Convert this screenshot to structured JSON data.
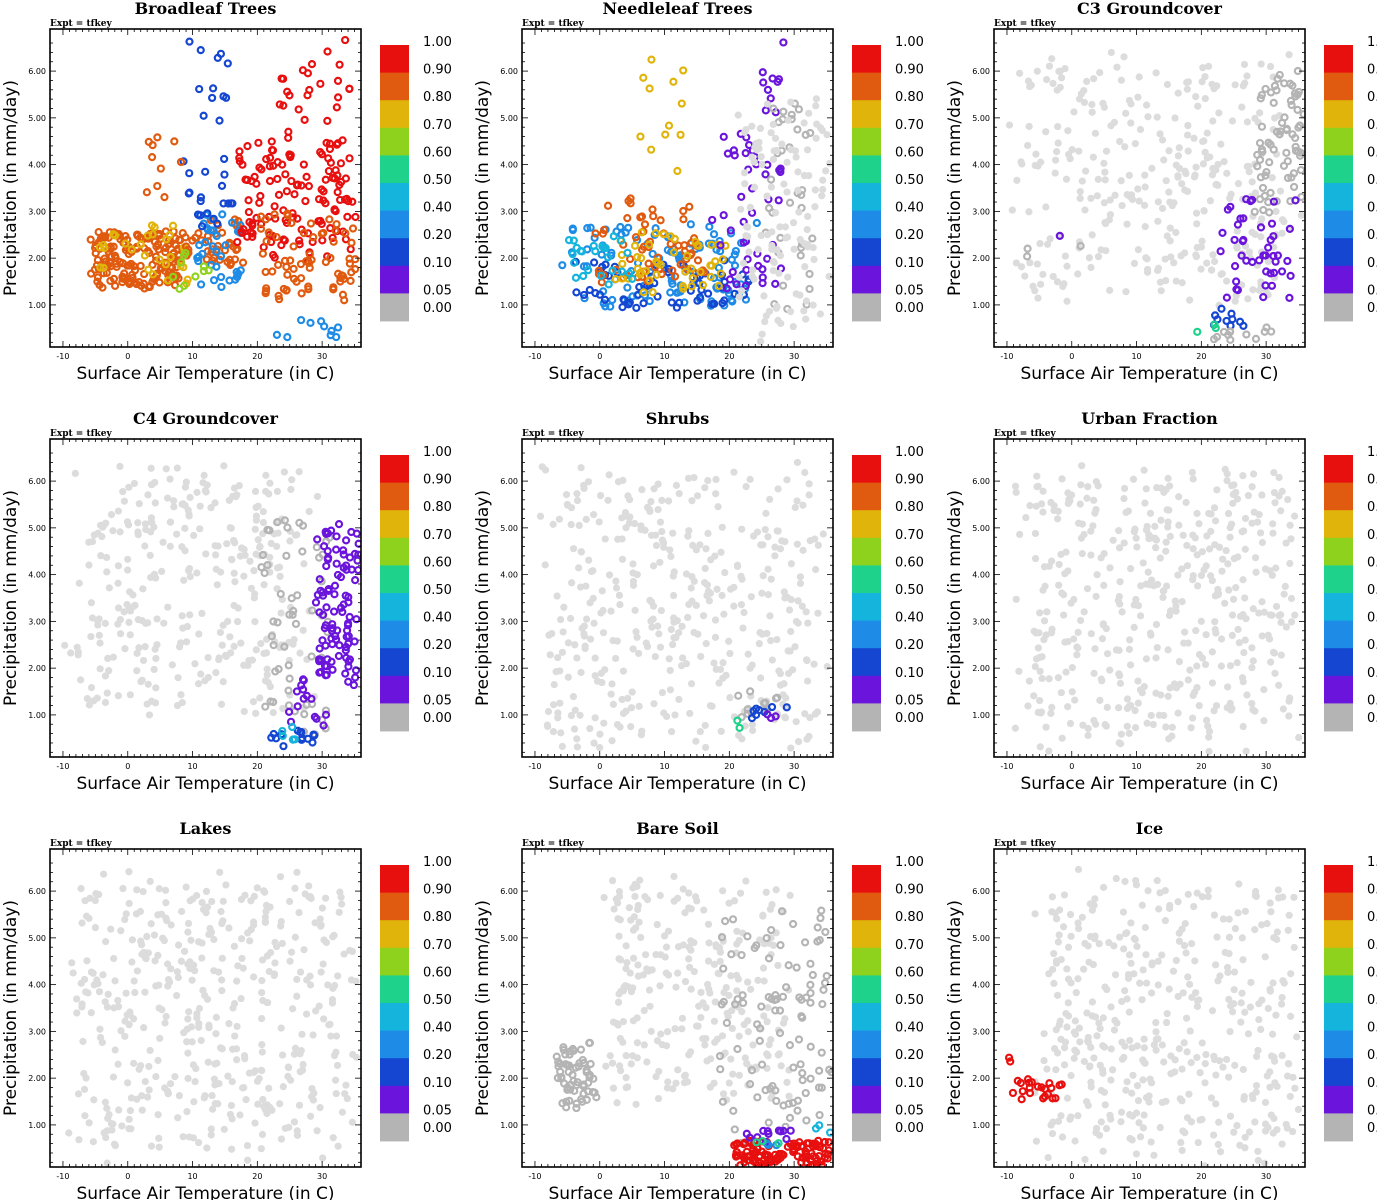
{
  "figure": {
    "expt_label": "Expt = tfkey",
    "xlabel": "Surface Air Temperature (in C)",
    "ylabel": "Precipitation (in mm/day)",
    "x_ticks": [
      "-10",
      "0",
      "10",
      "20",
      "30"
    ],
    "y_ticks": [
      "1.00",
      "2.00",
      "3.00",
      "4.00",
      "5.00",
      "6.00"
    ],
    "colorbar_labels": [
      "1.00",
      "0.90",
      "0.80",
      "0.70",
      "0.60",
      "0.50",
      "0.40",
      "0.20",
      "0.10",
      "0.05",
      "0.00"
    ],
    "colorbar_colors": [
      "#e80f0f",
      "#e05a0f",
      "#e0b40a",
      "#8fd21e",
      "#1ed28c",
      "#14b4dc",
      "#1e8ce6",
      "#1446d2",
      "#6a14dc",
      "#b4b4b4"
    ],
    "background_point_color": "#dcdcdc"
  },
  "chart_data": [
    {
      "type": "scatter",
      "title": "Broadleaf Trees",
      "xlabel": "Surface Air Temperature (in C)",
      "ylabel": "Precipitation (in mm/day)",
      "xlim": [
        -12,
        36
      ],
      "ylim": [
        0.1,
        6.9
      ],
      "clusters": [
        {
          "color": "#e05a0f",
          "n": 170,
          "x": [
            -6,
            10
          ],
          "y": [
            1.3,
            2.6
          ]
        },
        {
          "color": "#e0b40a",
          "n": 30,
          "x": [
            -6,
            10
          ],
          "y": [
            1.4,
            2.8
          ]
        },
        {
          "color": "#e05a0f",
          "n": 40,
          "x": [
            8,
            18
          ],
          "y": [
            1.8,
            3.0
          ]
        },
        {
          "color": "#1e8ce6",
          "n": 40,
          "x": [
            10,
            18
          ],
          "y": [
            1.2,
            3.0
          ]
        },
        {
          "color": "#1446d2",
          "n": 20,
          "x": [
            8,
            17
          ],
          "y": [
            2.5,
            4.4
          ]
        },
        {
          "color": "#e80f0f",
          "n": 130,
          "x": [
            16,
            36
          ],
          "y": [
            1.8,
            4.6
          ]
        },
        {
          "color": "#e05a0f",
          "n": 70,
          "x": [
            20,
            36
          ],
          "y": [
            1.0,
            3.0
          ]
        },
        {
          "color": "#e80f0f",
          "n": 25,
          "x": [
            22,
            35
          ],
          "y": [
            4.3,
            6.8
          ]
        },
        {
          "color": "#1446d2",
          "n": 12,
          "x": [
            9,
            16
          ],
          "y": [
            4.5,
            6.7
          ]
        },
        {
          "color": "#1e8ce6",
          "n": 10,
          "x": [
            22,
            33
          ],
          "y": [
            0.3,
            0.7
          ]
        },
        {
          "color": "#e05a0f",
          "n": 10,
          "x": [
            2,
            9
          ],
          "y": [
            3.1,
            4.7
          ]
        },
        {
          "color": "#8fd21e",
          "n": 10,
          "x": [
            4,
            14
          ],
          "y": [
            1.2,
            2.3
          ]
        }
      ]
    },
    {
      "type": "scatter",
      "title": "Needleleaf Trees",
      "xlabel": "Surface Air Temperature (in C)",
      "ylabel": "Precipitation (in mm/day)",
      "xlim": [
        -12,
        36
      ],
      "ylim": [
        0.1,
        6.9
      ],
      "clusters": [
        {
          "color": "#1e8ce6",
          "n": 110,
          "x": [
            -6,
            25
          ],
          "y": [
            0.9,
            2.8
          ]
        },
        {
          "color": "#1446d2",
          "n": 60,
          "x": [
            -4,
            26
          ],
          "y": [
            0.9,
            2.0
          ]
        },
        {
          "color": "#e05a0f",
          "n": 60,
          "x": [
            -2,
            17
          ],
          "y": [
            1.4,
            3.4
          ]
        },
        {
          "color": "#e0b40a",
          "n": 50,
          "x": [
            2,
            20
          ],
          "y": [
            1.2,
            2.6
          ]
        },
        {
          "color": "#14b4dc",
          "n": 25,
          "x": [
            -6,
            6
          ],
          "y": [
            1.4,
            2.6
          ]
        },
        {
          "color": "#6a14dc",
          "n": 45,
          "x": [
            17,
            29
          ],
          "y": [
            0.9,
            4.8
          ]
        },
        {
          "color": "#6a14dc",
          "n": 10,
          "x": [
            23,
            29
          ],
          "y": [
            4.8,
            6.8
          ]
        },
        {
          "color": "#e0b40a",
          "n": 12,
          "x": [
            5,
            13
          ],
          "y": [
            3.5,
            6.6
          ]
        },
        {
          "color": "#b4b4b4",
          "n": 35,
          "x": [
            25,
            34
          ],
          "y": [
            0.8,
            5.6
          ]
        },
        {
          "color": "#dcdcdc",
          "n": 120,
          "x": [
            20,
            36
          ],
          "y": [
            0.1,
            5.5
          ]
        }
      ]
    },
    {
      "type": "scatter",
      "title": "C3 Groundcover",
      "xlabel": "Surface Air Temperature (in C)",
      "ylabel": "Precipitation (in mm/day)",
      "xlim": [
        -12,
        36
      ],
      "ylim": [
        0.1,
        6.9
      ],
      "clusters": [
        {
          "color": "#dcdcdc",
          "n": 320,
          "x": [
            -10,
            36
          ],
          "y": [
            0.8,
            6.5
          ]
        },
        {
          "color": "#b4b4b4",
          "n": 70,
          "x": [
            28,
            36
          ],
          "y": [
            2.8,
            6.2
          ]
        },
        {
          "color": "#6a14dc",
          "n": 45,
          "x": [
            22,
            36
          ],
          "y": [
            1.0,
            3.4
          ]
        },
        {
          "color": "#1446d2",
          "n": 10,
          "x": [
            21,
            27
          ],
          "y": [
            0.5,
            1.0
          ]
        },
        {
          "color": "#1ed28c",
          "n": 3,
          "x": [
            19,
            23
          ],
          "y": [
            0.4,
            0.6
          ]
        },
        {
          "color": "#b4b4b4",
          "n": 12,
          "x": [
            21,
            33
          ],
          "y": [
            0.2,
            0.6
          ]
        },
        {
          "color": "#b4b4b4",
          "n": 3,
          "x": [
            -8,
            3
          ],
          "y": [
            1.9,
            2.4
          ]
        },
        {
          "color": "#6a14dc",
          "n": 1,
          "x": [
            -2,
            -1
          ],
          "y": [
            2.4,
            2.5
          ]
        }
      ]
    },
    {
      "type": "scatter",
      "title": "C4 Groundcover",
      "xlabel": "Surface Air Temperature (in C)",
      "ylabel": "Precipitation (in mm/day)",
      "xlim": [
        -12,
        36
      ],
      "ylim": [
        0.1,
        6.9
      ],
      "clusters": [
        {
          "color": "#dcdcdc",
          "n": 320,
          "x": [
            -10,
            30
          ],
          "y": [
            0.8,
            6.5
          ]
        },
        {
          "color": "#b4b4b4",
          "n": 55,
          "x": [
            20,
            32
          ],
          "y": [
            0.2,
            5.6
          ]
        },
        {
          "color": "#6a14dc",
          "n": 95,
          "x": [
            29,
            36
          ],
          "y": [
            1.5,
            5.2
          ]
        },
        {
          "color": "#6a14dc",
          "n": 20,
          "x": [
            24,
            31
          ],
          "y": [
            0.6,
            2.2
          ]
        },
        {
          "color": "#1446d2",
          "n": 15,
          "x": [
            21,
            29
          ],
          "y": [
            0.3,
            0.7
          ]
        },
        {
          "color": "#14b4dc",
          "n": 5,
          "x": [
            22,
            27
          ],
          "y": [
            0.4,
            0.8
          ]
        }
      ]
    },
    {
      "type": "scatter",
      "title": "Shrubs",
      "xlabel": "Surface Air Temperature (in C)",
      "ylabel": "Precipitation (in mm/day)",
      "xlim": [
        -12,
        36
      ],
      "ylim": [
        0.1,
        6.9
      ],
      "clusters": [
        {
          "color": "#dcdcdc",
          "n": 400,
          "x": [
            -10,
            36
          ],
          "y": [
            0.1,
            6.5
          ]
        },
        {
          "color": "#b4b4b4",
          "n": 12,
          "x": [
            21,
            29
          ],
          "y": [
            0.9,
            1.7
          ]
        },
        {
          "color": "#1446d2",
          "n": 8,
          "x": [
            23,
            29
          ],
          "y": [
            0.9,
            1.2
          ]
        },
        {
          "color": "#1ed28c",
          "n": 2,
          "x": [
            21,
            25
          ],
          "y": [
            0.7,
            1.0
          ]
        },
        {
          "color": "#6a14dc",
          "n": 3,
          "x": [
            24,
            28
          ],
          "y": [
            0.9,
            1.1
          ]
        }
      ]
    },
    {
      "type": "scatter",
      "title": "Urban Fraction",
      "xlabel": "Surface Air Temperature (in C)",
      "ylabel": "Precipitation (in mm/day)",
      "xlim": [
        -12,
        36
      ],
      "ylim": [
        0.1,
        6.9
      ],
      "clusters": [
        {
          "color": "#dcdcdc",
          "n": 450,
          "x": [
            -10,
            36
          ],
          "y": [
            0.1,
            6.5
          ]
        }
      ]
    },
    {
      "type": "scatter",
      "title": "Lakes",
      "xlabel": "Surface Air Temperature (in C)",
      "ylabel": "Precipitation (in mm/day)",
      "xlim": [
        -12,
        36
      ],
      "ylim": [
        0.1,
        6.9
      ],
      "clusters": [
        {
          "color": "#dcdcdc",
          "n": 450,
          "x": [
            -10,
            36
          ],
          "y": [
            0.1,
            6.5
          ]
        }
      ]
    },
    {
      "type": "scatter",
      "title": "Bare Soil",
      "xlabel": "Surface Air Temperature (in C)",
      "ylabel": "Precipitation (in mm/day)",
      "xlim": [
        -12,
        36
      ],
      "ylim": [
        0.1,
        6.9
      ],
      "clusters": [
        {
          "color": "#dcdcdc",
          "n": 260,
          "x": [
            0,
            30
          ],
          "y": [
            1.2,
            6.5
          ]
        },
        {
          "color": "#b4b4b4",
          "n": 60,
          "x": [
            -7,
            1
          ],
          "y": [
            1.2,
            2.8
          ]
        },
        {
          "color": "#b4b4b4",
          "n": 100,
          "x": [
            18,
            36
          ],
          "y": [
            0.5,
            5.8
          ]
        },
        {
          "color": "#e80f0f",
          "n": 110,
          "x": [
            20,
            36
          ],
          "y": [
            0.1,
            0.7
          ]
        },
        {
          "color": "#6a14dc",
          "n": 12,
          "x": [
            21,
            32
          ],
          "y": [
            0.6,
            0.9
          ]
        },
        {
          "color": "#1e8ce6",
          "n": 4,
          "x": [
            23,
            30
          ],
          "y": [
            0.5,
            0.8
          ]
        },
        {
          "color": "#1ed28c",
          "n": 3,
          "x": [
            22,
            28
          ],
          "y": [
            0.5,
            0.7
          ]
        },
        {
          "color": "#14b4dc",
          "n": 3,
          "x": [
            33,
            36
          ],
          "y": [
            0.8,
            1.0
          ]
        }
      ]
    },
    {
      "type": "scatter",
      "title": "Ice",
      "xlabel": "Surface Air Temperature (in C)",
      "ylabel": "Precipitation (in mm/day)",
      "xlim": [
        -12,
        36
      ],
      "ylim": [
        0.1,
        6.9
      ],
      "clusters": [
        {
          "color": "#dcdcdc",
          "n": 420,
          "x": [
            -7,
            36
          ],
          "y": [
            0.1,
            6.5
          ]
        },
        {
          "color": "#e80f0f",
          "n": 22,
          "x": [
            -10,
            -1
          ],
          "y": [
            1.5,
            2.0
          ]
        },
        {
          "color": "#e80f0f",
          "n": 2,
          "x": [
            -12,
            -9
          ],
          "y": [
            2.2,
            2.5
          ]
        }
      ]
    }
  ]
}
